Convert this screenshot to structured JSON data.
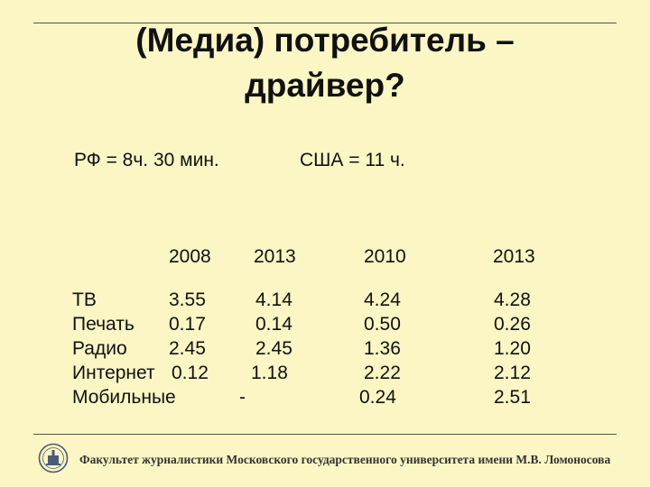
{
  "slide": {
    "title_line1": "(Медиа) потребитель –",
    "title_line2": "драйвер?",
    "stat_ru": "РФ  = 8ч. 30 мин.",
    "stat_us": "США = 11 ч."
  },
  "table": {
    "years": [
      "2008",
      "2013",
      "2010",
      "2013"
    ],
    "rows": [
      {
        "label": "ТВ",
        "values": [
          "3.55",
          "4.14",
          "4.24",
          "4.28"
        ]
      },
      {
        "label": "Печать",
        "values": [
          "0.17",
          "0.14",
          "0.50",
          "0.26"
        ]
      },
      {
        "label": "Радио",
        "values": [
          "2.45",
          "2.45",
          "1.36",
          "1.20"
        ]
      },
      {
        "label": "Интернет",
        "values": [
          "0.12",
          "1.18",
          "2.22",
          "2.12"
        ]
      },
      {
        "label": "Мобильные",
        "values": [
          "",
          "-",
          "0.24",
          "2.51"
        ]
      }
    ]
  },
  "footer": {
    "text": "Факультет журналистики Московского государственного университета имени М.В. Ломоносова",
    "logo": "university-emblem"
  },
  "colors": {
    "background": "#fbf6c4",
    "rule": "#555555",
    "text": "#111111"
  }
}
